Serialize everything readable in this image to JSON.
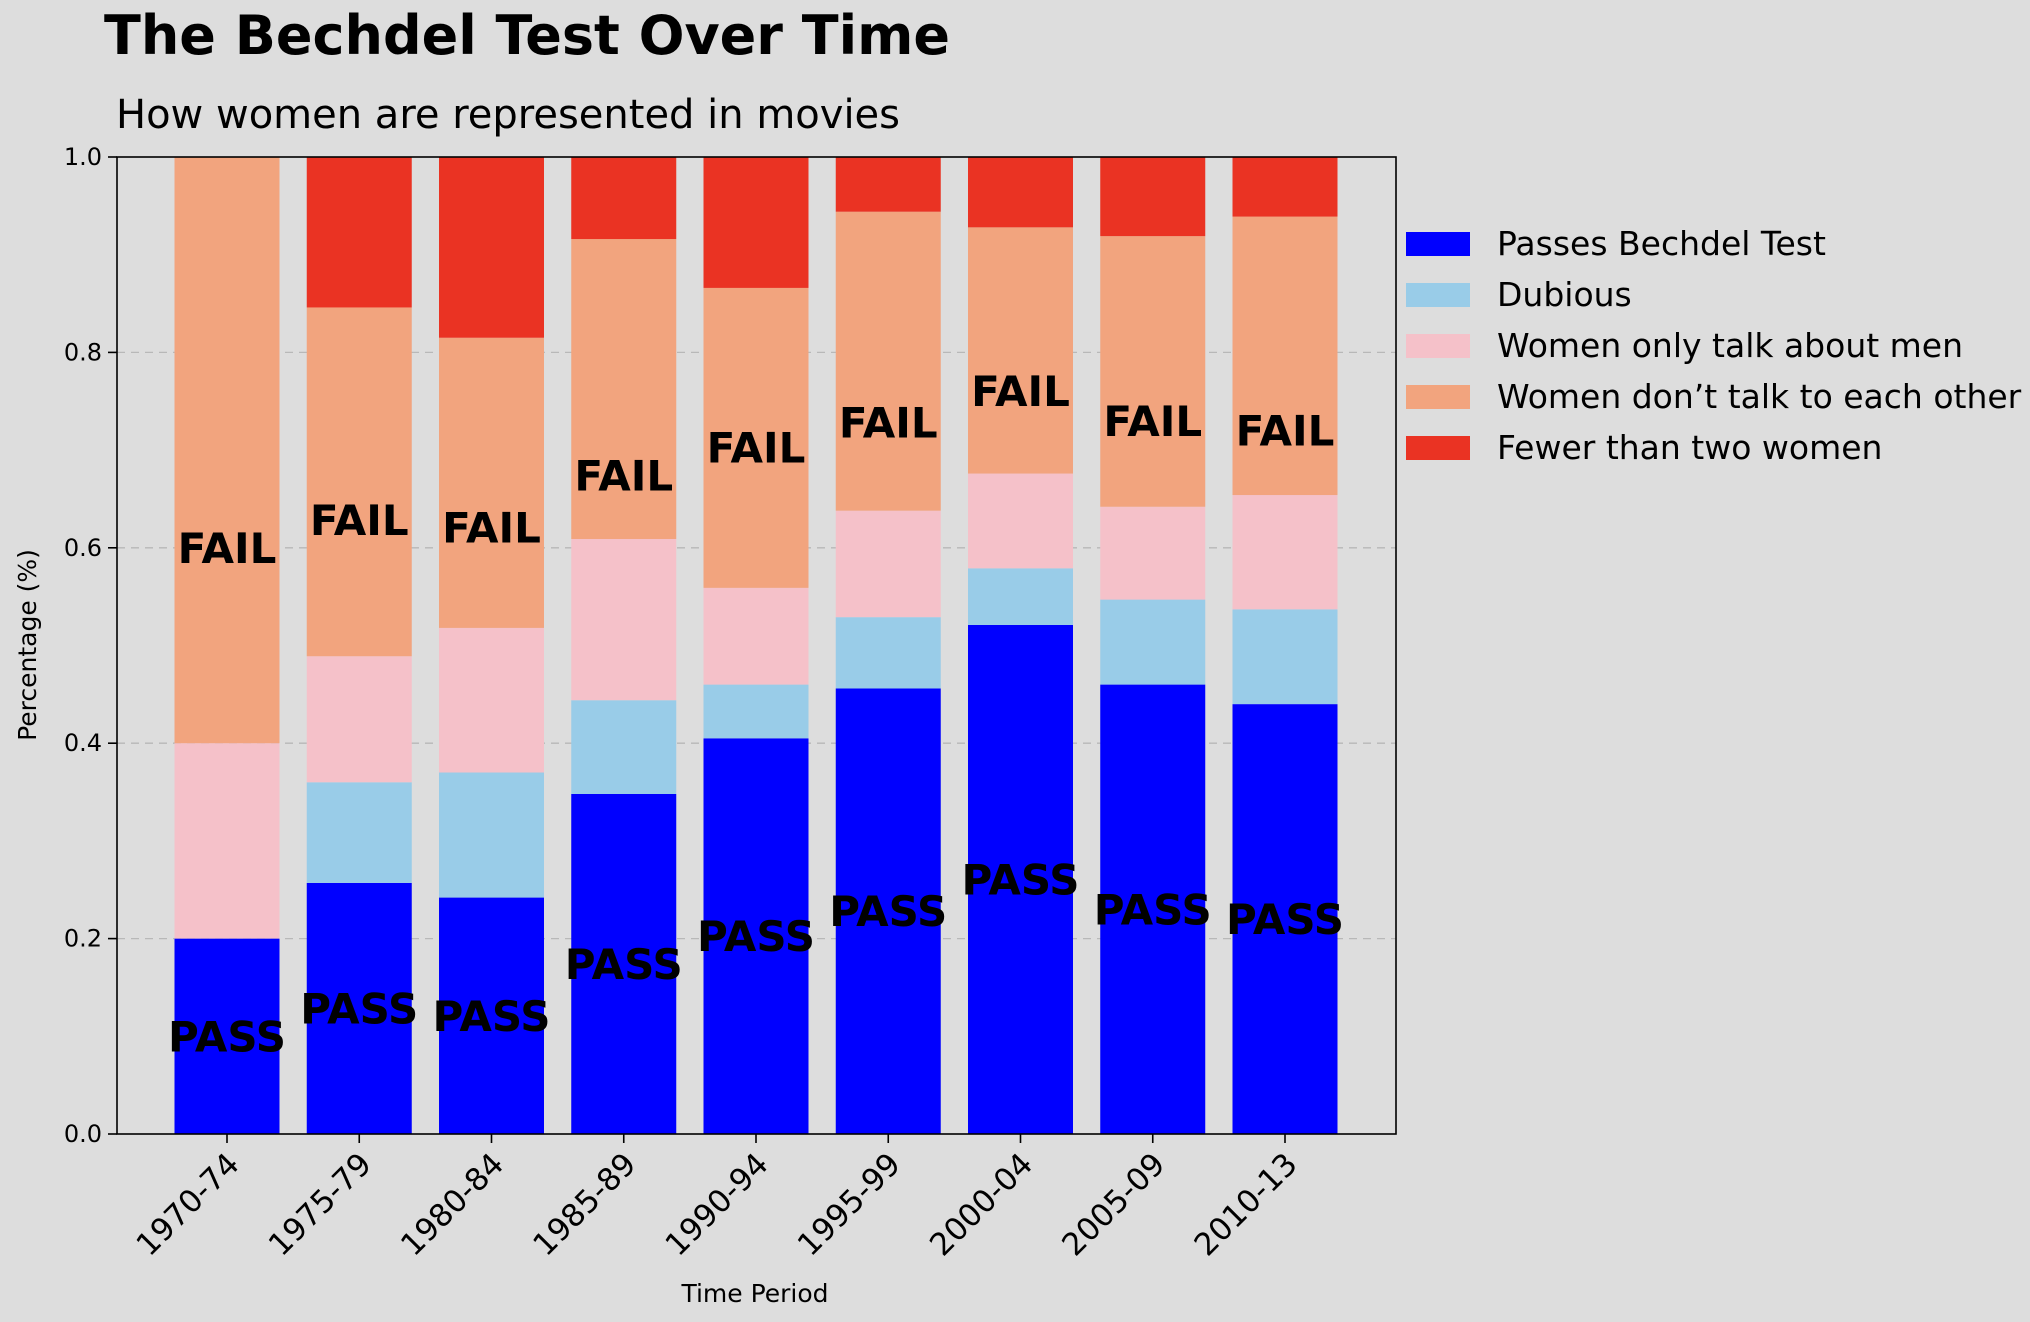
{
  "chart_data": {
    "type": "bar",
    "stacked": true,
    "title": "The Bechdel Test Over Time",
    "subtitle": "How women are represented in movies",
    "xlabel": "Time Period",
    "ylabel": "Percentage (%)",
    "ylim": [
      0,
      1
    ],
    "yticks": [
      "0.0",
      "0.2",
      "0.4",
      "0.6",
      "0.8",
      "1.0"
    ],
    "grid": "horizontal dashed",
    "legend_position": "right",
    "categories": [
      "1970-74",
      "1975-79",
      "1980-84",
      "1985-89",
      "1990-94",
      "1995-99",
      "2000-04",
      "2005-09",
      "2010-13"
    ],
    "series": [
      {
        "name": "Passes Bechdel Test",
        "color": "#0000ff",
        "values": [
          0.2,
          0.257,
          0.242,
          0.348,
          0.405,
          0.456,
          0.521,
          0.46,
          0.44
        ]
      },
      {
        "name": "Dubious",
        "color": "#99cce8",
        "values": [
          0.0,
          0.103,
          0.128,
          0.096,
          0.055,
          0.073,
          0.058,
          0.087,
          0.097
        ]
      },
      {
        "name": "Women only talk about men",
        "color": "#f5c1c9",
        "values": [
          0.2,
          0.129,
          0.148,
          0.165,
          0.099,
          0.109,
          0.097,
          0.095,
          0.117
        ]
      },
      {
        "name": "Women don’t talk to each other",
        "color": "#f2a47e",
        "values": [
          0.6,
          0.357,
          0.297,
          0.307,
          0.307,
          0.306,
          0.252,
          0.277,
          0.285
        ]
      },
      {
        "name": "Fewer than two women",
        "color": "#ea3323",
        "values": [
          0.0,
          0.154,
          0.185,
          0.084,
          0.134,
          0.056,
          0.072,
          0.081,
          0.061
        ]
      }
    ],
    "bar_labels": {
      "pass": "PASS",
      "fail": "FAIL"
    }
  }
}
